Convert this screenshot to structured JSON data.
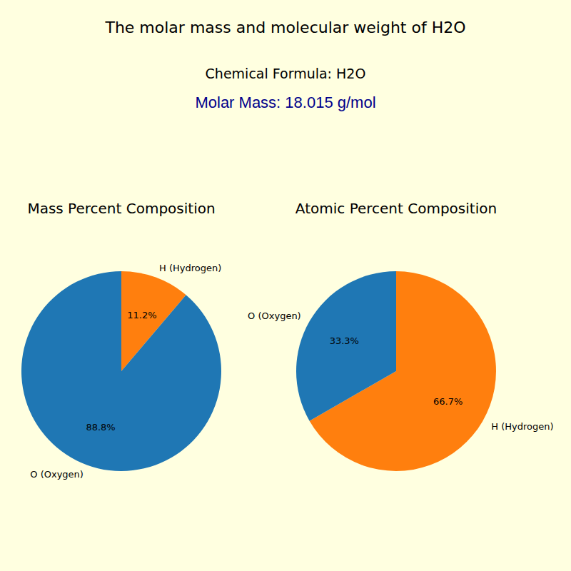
{
  "header": {
    "title": "The molar mass and molecular weight of H2O",
    "formula": "Chemical Formula: H2O",
    "molar_mass": "Molar Mass: 18.015 g/mol"
  },
  "chart_data": [
    {
      "type": "pie",
      "title": "Mass Percent Composition",
      "categories": [
        "H (Hydrogen)",
        "O (Oxygen)"
      ],
      "values": [
        11.2,
        88.8
      ],
      "value_labels": [
        "11.2%",
        "88.8%"
      ],
      "colors": [
        "#ff7f0e",
        "#1f77b4"
      ],
      "data_labels": true
    },
    {
      "type": "pie",
      "title": "Atomic Percent Composition",
      "categories": [
        "H (Hydrogen)",
        "O (Oxygen)"
      ],
      "values": [
        66.7,
        33.3
      ],
      "value_labels": [
        "66.7%",
        "33.3%"
      ],
      "colors": [
        "#ff7f0e",
        "#1f77b4"
      ],
      "data_labels": true
    }
  ]
}
